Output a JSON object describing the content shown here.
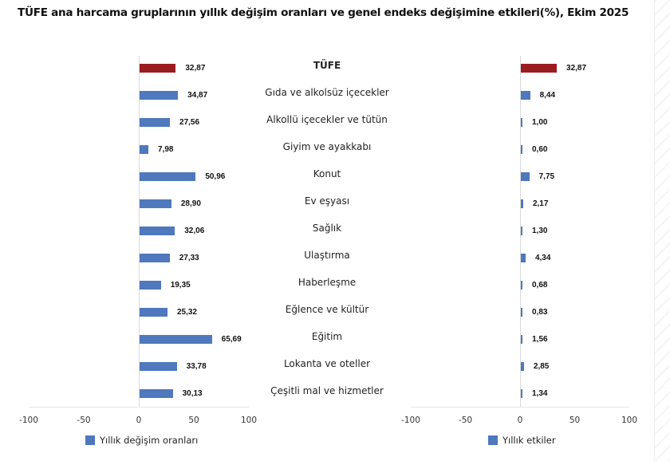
{
  "title": "TÜFE ana harcama gruplarının yıllık değişim oranları ve genel endeks değişimine etkileri(%), Ekim 2025",
  "chart_data": [
    {
      "type": "bar",
      "orientation": "horizontal",
      "title": "Yıllık değişim oranları",
      "categories": [
        "TÜFE",
        "Gıda ve alkolsüz içecekler",
        "Alkollü içecekler ve tütün",
        "Giyim ve ayakkabı",
        "Konut",
        "Ev eşyası",
        "Sağlık",
        "Ulaştırma",
        "Haberleşme",
        "Eğlence ve kültür",
        "Eğitim",
        "Lokanta ve oteller",
        "Çeşitli mal ve hizmetler"
      ],
      "values": [
        32.87,
        34.87,
        27.56,
        7.98,
        50.96,
        28.9,
        32.06,
        27.33,
        19.35,
        25.32,
        65.69,
        33.78,
        30.13
      ],
      "labels": [
        "32,87",
        "34,87",
        "27,56",
        "7,98",
        "50,96",
        "28,90",
        "32,06",
        "27,33",
        "19,35",
        "25,32",
        "65,69",
        "33,78",
        "30,13"
      ],
      "xlim": [
        -100,
        100
      ],
      "xticks": [
        "-100",
        "-50",
        "0",
        "50",
        "100"
      ],
      "legend": "Yıllık değişim oranları",
      "legend_position": "bottom",
      "grid": false
    },
    {
      "type": "bar",
      "orientation": "horizontal",
      "title": "Yıllık etkiler",
      "categories": [
        "TÜFE",
        "Gıda ve alkolsüz içecekler",
        "Alkollü içecekler ve tütün",
        "Giyim ve ayakkabı",
        "Konut",
        "Ev eşyası",
        "Sağlık",
        "Ulaştırma",
        "Haberleşme",
        "Eğlence ve kültür",
        "Eğitim",
        "Lokanta ve oteller",
        "Çeşitli mal ve hizmetler"
      ],
      "values": [
        32.87,
        8.44,
        1.0,
        0.6,
        7.75,
        2.17,
        1.3,
        4.34,
        0.68,
        0.83,
        1.56,
        2.85,
        1.34
      ],
      "labels": [
        "32,87",
        "8,44",
        "1,00",
        "0,60",
        "7,75",
        "2,17",
        "1,30",
        "4,34",
        "0,68",
        "0,83",
        "1,56",
        "2,85",
        "1,34"
      ],
      "xlim": [
        -100,
        100
      ],
      "xticks": [
        "-100",
        "-50",
        "0",
        "50",
        "100"
      ],
      "legend": "Yıllık etkiler",
      "legend_position": "bottom",
      "grid": false
    }
  ],
  "colors": {
    "highlight": "#9b1c20",
    "series": "#4f78bd"
  }
}
